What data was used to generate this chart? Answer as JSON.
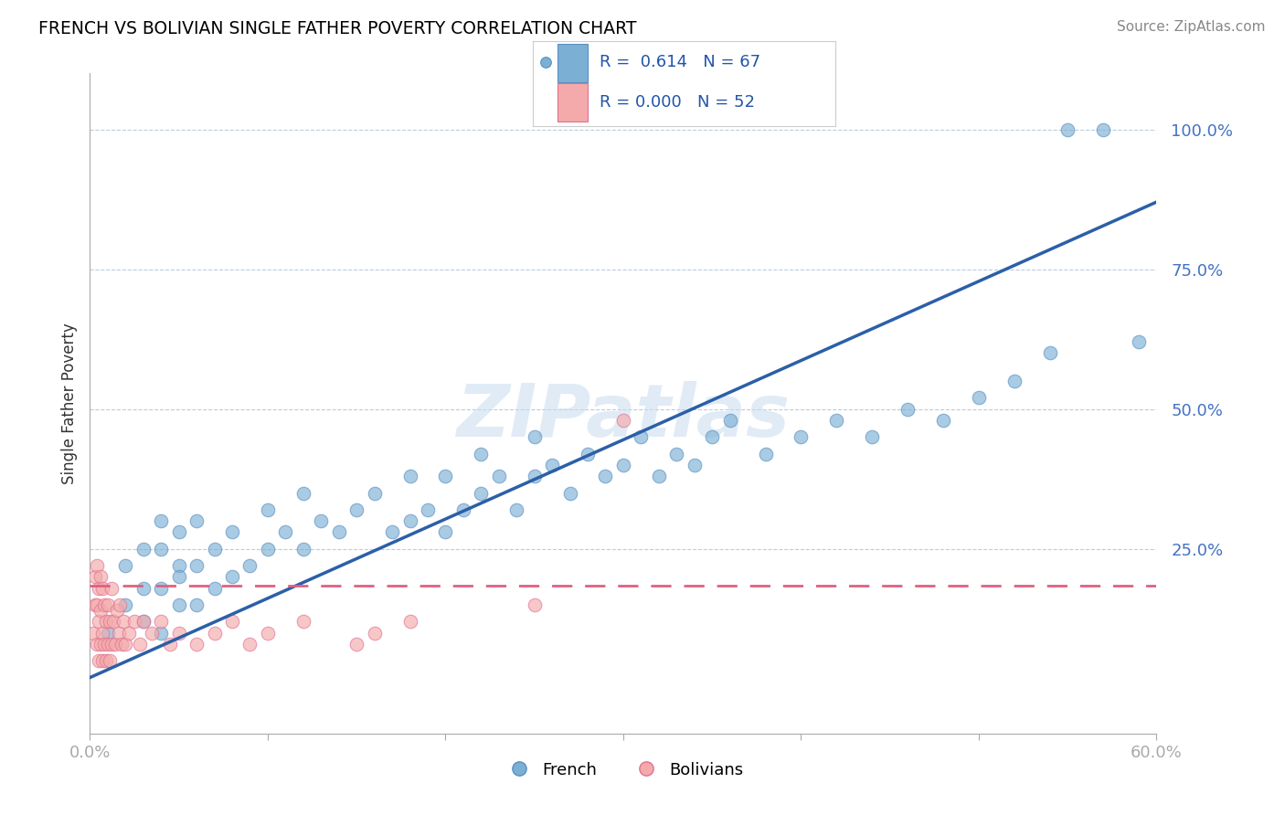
{
  "title": "FRENCH VS BOLIVIAN SINGLE FATHER POVERTY CORRELATION CHART",
  "source_text": "Source: ZipAtlas.com",
  "ylabel": "Single Father Poverty",
  "xlim": [
    0.0,
    0.6
  ],
  "ylim": [
    -0.08,
    1.1
  ],
  "french_color": "#7BAFD4",
  "french_edge_color": "#5A8FC0",
  "bolivian_color": "#F4AAAA",
  "bolivian_edge_color": "#E07090",
  "french_line_color": "#2B5FA8",
  "bolivian_line_color": "#E06080",
  "legend_french_R": "0.614",
  "legend_french_N": "67",
  "legend_bolivian_R": "0.000",
  "legend_bolivian_N": "52",
  "watermark": "ZIPatlas",
  "french_scatter_x": [
    0.01,
    0.02,
    0.02,
    0.03,
    0.03,
    0.03,
    0.04,
    0.04,
    0.04,
    0.04,
    0.05,
    0.05,
    0.05,
    0.05,
    0.06,
    0.06,
    0.06,
    0.07,
    0.07,
    0.08,
    0.08,
    0.09,
    0.1,
    0.1,
    0.11,
    0.12,
    0.12,
    0.13,
    0.14,
    0.15,
    0.16,
    0.17,
    0.18,
    0.18,
    0.19,
    0.2,
    0.2,
    0.21,
    0.22,
    0.22,
    0.23,
    0.24,
    0.25,
    0.25,
    0.26,
    0.27,
    0.28,
    0.29,
    0.3,
    0.31,
    0.32,
    0.33,
    0.34,
    0.35,
    0.36,
    0.38,
    0.4,
    0.42,
    0.44,
    0.46,
    0.48,
    0.5,
    0.52,
    0.54,
    0.55,
    0.57,
    0.59
  ],
  "french_scatter_y": [
    0.1,
    0.15,
    0.22,
    0.12,
    0.18,
    0.25,
    0.1,
    0.18,
    0.25,
    0.3,
    0.15,
    0.22,
    0.28,
    0.2,
    0.15,
    0.22,
    0.3,
    0.18,
    0.25,
    0.2,
    0.28,
    0.22,
    0.25,
    0.32,
    0.28,
    0.25,
    0.35,
    0.3,
    0.28,
    0.32,
    0.35,
    0.28,
    0.3,
    0.38,
    0.32,
    0.28,
    0.38,
    0.32,
    0.35,
    0.42,
    0.38,
    0.32,
    0.38,
    0.45,
    0.4,
    0.35,
    0.42,
    0.38,
    0.4,
    0.45,
    0.38,
    0.42,
    0.4,
    0.45,
    0.48,
    0.42,
    0.45,
    0.48,
    0.45,
    0.5,
    0.48,
    0.52,
    0.55,
    0.6,
    1.0,
    1.0,
    0.62
  ],
  "bolivian_scatter_x": [
    0.002,
    0.003,
    0.003,
    0.004,
    0.004,
    0.004,
    0.005,
    0.005,
    0.005,
    0.006,
    0.006,
    0.006,
    0.007,
    0.007,
    0.007,
    0.008,
    0.008,
    0.009,
    0.009,
    0.01,
    0.01,
    0.011,
    0.011,
    0.012,
    0.012,
    0.013,
    0.014,
    0.015,
    0.016,
    0.017,
    0.018,
    0.019,
    0.02,
    0.022,
    0.025,
    0.028,
    0.03,
    0.035,
    0.04,
    0.045,
    0.05,
    0.06,
    0.07,
    0.08,
    0.09,
    0.1,
    0.12,
    0.15,
    0.16,
    0.18,
    0.25,
    0.3
  ],
  "bolivian_scatter_y": [
    0.1,
    0.15,
    0.2,
    0.08,
    0.15,
    0.22,
    0.05,
    0.12,
    0.18,
    0.08,
    0.14,
    0.2,
    0.05,
    0.1,
    0.18,
    0.08,
    0.15,
    0.05,
    0.12,
    0.08,
    0.15,
    0.05,
    0.12,
    0.08,
    0.18,
    0.12,
    0.08,
    0.14,
    0.1,
    0.15,
    0.08,
    0.12,
    0.08,
    0.1,
    0.12,
    0.08,
    0.12,
    0.1,
    0.12,
    0.08,
    0.1,
    0.08,
    0.1,
    0.12,
    0.08,
    0.1,
    0.12,
    0.08,
    0.1,
    0.12,
    0.15,
    0.48
  ]
}
